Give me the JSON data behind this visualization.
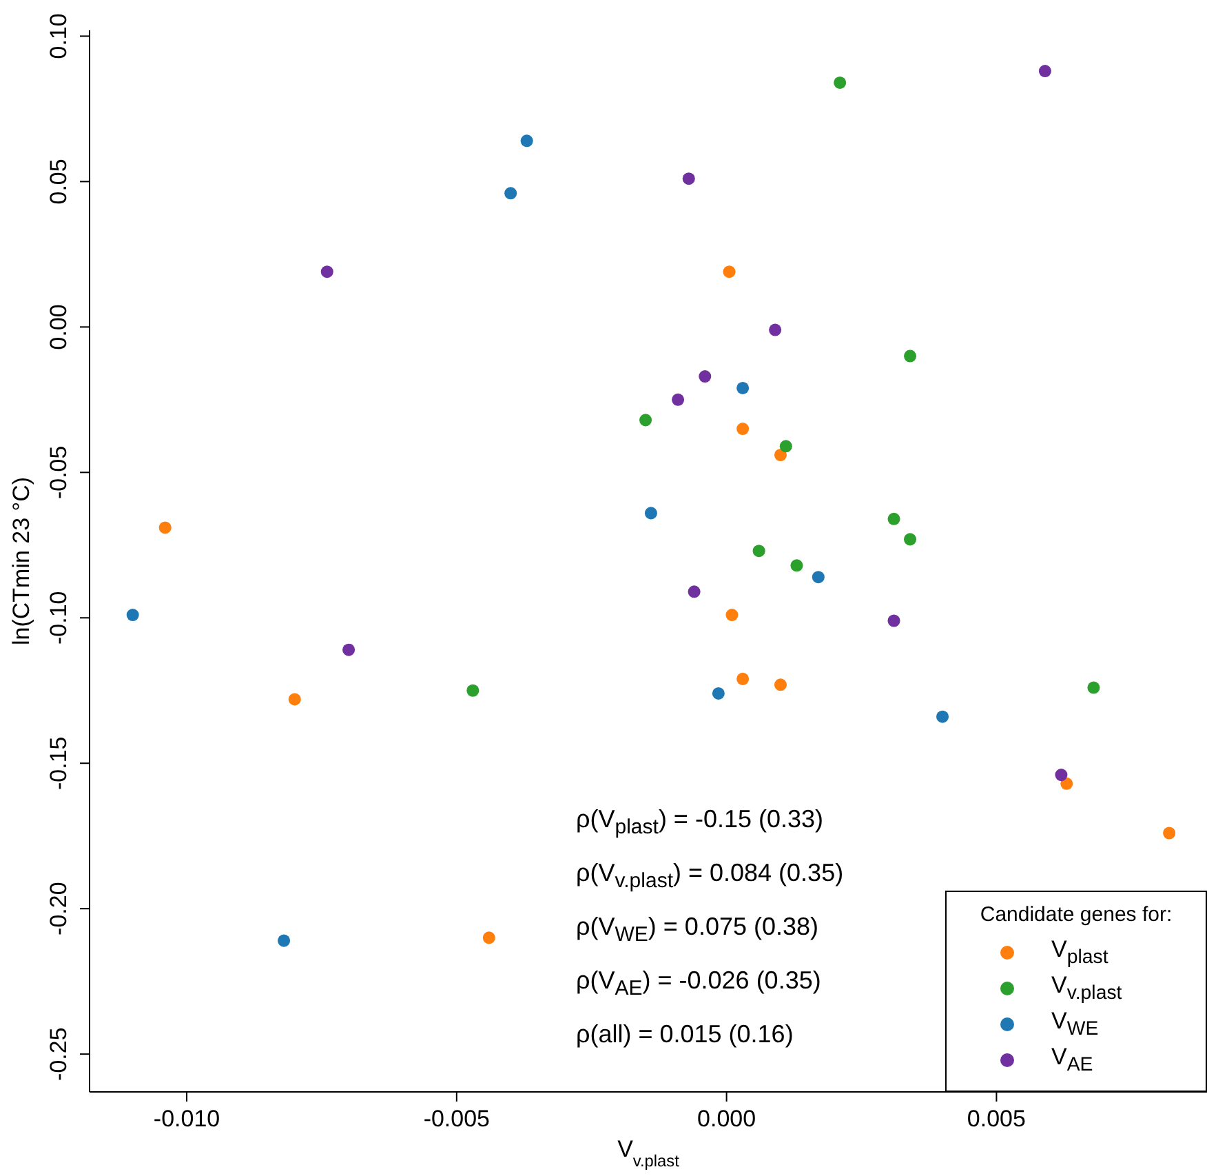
{
  "chart_data": {
    "type": "scatter",
    "xlabel": "V$_{v.plast}$",
    "ylabel": "ln(CTmin 23 °C)",
    "legend_title": "Candidate genes for:",
    "legend": "bottom right",
    "marker": "circle",
    "xlim": [
      -0.0118,
      0.0089
    ],
    "ylim": [
      -0.263,
      0.102
    ],
    "xticks": [
      {
        "value": -0.01,
        "label": "-0.010"
      },
      {
        "value": -0.005,
        "label": "-0.005"
      },
      {
        "value": 0,
        "label": "0.000"
      },
      {
        "value": 0.005,
        "label": "0.005"
      }
    ],
    "yticks": [
      {
        "value": -0.25,
        "label": "-0.25"
      },
      {
        "value": -0.2,
        "label": "-0.20"
      },
      {
        "value": -0.15,
        "label": "-0.15"
      },
      {
        "value": -0.1,
        "label": "-0.10"
      },
      {
        "value": -0.05,
        "label": "-0.05"
      },
      {
        "value": 0,
        "label": "0.00"
      },
      {
        "value": 0.05,
        "label": "0.05"
      },
      {
        "value": 0.1,
        "label": "0.10"
      }
    ],
    "series": [
      {
        "name": "V$_{plast}$",
        "color": "#ff7f0e",
        "x": [
          5e-05,
          0.0003,
          0.001,
          -0.0104,
          0.0001,
          0.0003,
          0.001,
          -0.008,
          0.0063,
          0.0082,
          -0.0044
        ],
        "values": [
          0.019,
          -0.035,
          -0.044,
          -0.069,
          -0.099,
          -0.121,
          -0.123,
          -0.128,
          -0.157,
          -0.174,
          -0.21
        ]
      },
      {
        "name": "V$_{v.plast}$",
        "color": "#2ca02c",
        "x": [
          0.0021,
          0.0034,
          -0.0015,
          0.0011,
          0.0031,
          0.0034,
          0.0006,
          0.0013,
          -0.0047,
          0.0068
        ],
        "values": [
          0.084,
          -0.01,
          -0.032,
          -0.041,
          -0.066,
          -0.073,
          -0.077,
          -0.082,
          -0.125,
          -0.124
        ]
      },
      {
        "name": "V$_{WE}$",
        "color": "#1f77b4",
        "x": [
          -0.0037,
          -0.004,
          0.0003,
          -0.0014,
          -0.011,
          0.0017,
          -0.00015,
          0.004,
          -0.0082
        ],
        "values": [
          0.064,
          0.046,
          -0.021,
          -0.064,
          -0.099,
          -0.086,
          -0.126,
          -0.134,
          -0.211
        ]
      },
      {
        "name": "V$_{AE}$",
        "color": "#7030a0",
        "x": [
          0.0059,
          -0.0007,
          -0.0074,
          0.0009,
          -0.0004,
          -0.0009,
          -0.0006,
          0.0031,
          -0.007,
          0.0062
        ],
        "values": [
          0.088,
          0.051,
          0.019,
          -0.001,
          -0.017,
          -0.025,
          -0.091,
          -0.101,
          -0.111,
          -0.154
        ]
      }
    ],
    "annotations": [
      "ρ(V$_{plast}$) = -0.15 (0.33)",
      "ρ(V$_{v.plast}$) = 0.084 (0.35)",
      "ρ(V$_{WE}$) = 0.075 (0.38)",
      "ρ(V$_{AE}$) = -0.026 (0.35)",
      "ρ(all) = 0.015 (0.16)"
    ]
  }
}
